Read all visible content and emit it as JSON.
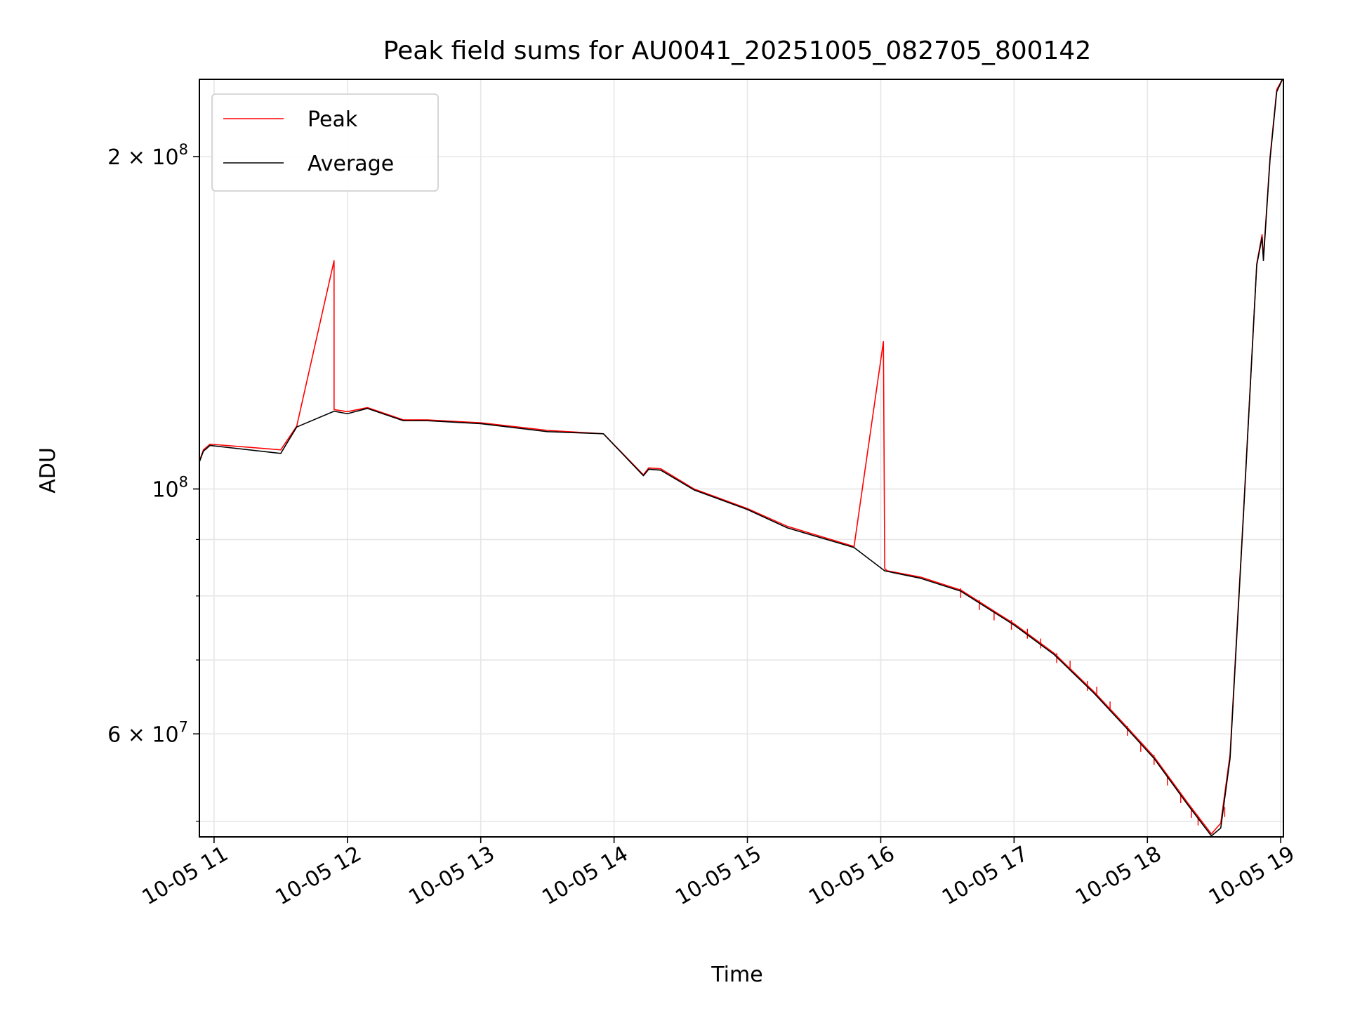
{
  "chart_data": {
    "type": "line",
    "title": "Peak field sums for AU0041_20251005_082705_800142",
    "xlabel": "Time",
    "ylabel": "ADU",
    "y_scale": "log",
    "xlim": [
      10.89,
      19.02
    ],
    "ylim": [
      48400000,
      235000000
    ],
    "grid": true,
    "legend_position": "top-left",
    "x_ticks": [
      {
        "value": 11,
        "label": "10-05 11"
      },
      {
        "value": 12,
        "label": "10-05 12"
      },
      {
        "value": 13,
        "label": "10-05 13"
      },
      {
        "value": 14,
        "label": "10-05 14"
      },
      {
        "value": 15,
        "label": "10-05 15"
      },
      {
        "value": 16,
        "label": "10-05 16"
      },
      {
        "value": 17,
        "label": "10-05 17"
      },
      {
        "value": 18,
        "label": "10-05 18"
      },
      {
        "value": 19,
        "label": "10-05 19"
      }
    ],
    "y_major_ticks": [
      {
        "value": 60000000,
        "mantissa": "6",
        "exponent": "7"
      },
      {
        "value": 100000000,
        "mantissa": "",
        "exponent": "8"
      },
      {
        "value": 200000000,
        "mantissa": "2",
        "exponent": "8"
      }
    ],
    "y_minor_ticks": [
      50000000,
      70000000,
      80000000,
      90000000
    ],
    "series": [
      {
        "name": "Peak",
        "color": "#ff0000",
        "x": [
          10.89,
          10.92,
          10.97,
          11.5,
          11.62,
          11.9,
          11.9,
          12.0,
          12.15,
          12.42,
          12.6,
          13.0,
          13.5,
          13.92,
          14.22,
          14.26,
          14.35,
          14.6,
          15.0,
          15.3,
          15.8,
          16.02,
          16.03,
          16.05,
          16.3,
          16.6,
          17.0,
          17.3,
          17.6,
          17.85,
          18.05,
          18.3,
          18.48,
          18.55,
          18.62,
          18.72,
          18.82,
          18.86,
          18.87,
          18.92,
          18.97,
          19.02
        ],
        "y": [
          106000000,
          108500000,
          109800000,
          108500000,
          114000000,
          161000000,
          118000000,
          117500000,
          118500000,
          115500000,
          115500000,
          114800000,
          113000000,
          112200000,
          103000000,
          104500000,
          104300000,
          100000000,
          96000000,
          92500000,
          88700000,
          136000000,
          84700000,
          84300000,
          83200000,
          81000000,
          75500000,
          71000000,
          65500000,
          60800000,
          57200000,
          52000000,
          48700000,
          49800000,
          57500000,
          95000000,
          160000000,
          170000000,
          162000000,
          200000000,
          230000000,
          236000000
        ],
        "glitches": [
          {
            "x": 16.6,
            "y": 81300000
          },
          {
            "x": 16.74,
            "y": 79300000
          },
          {
            "x": 16.85,
            "y": 77600000
          },
          {
            "x": 16.98,
            "y": 76100000
          },
          {
            "x": 17.1,
            "y": 74700000
          },
          {
            "x": 17.2,
            "y": 73200000
          },
          {
            "x": 17.32,
            "y": 71000000
          },
          {
            "x": 17.42,
            "y": 69900000
          },
          {
            "x": 17.55,
            "y": 67000000
          },
          {
            "x": 17.62,
            "y": 66200000
          },
          {
            "x": 17.72,
            "y": 64200000
          },
          {
            "x": 17.85,
            "y": 61000000
          },
          {
            "x": 17.95,
            "y": 59000000
          },
          {
            "x": 18.05,
            "y": 57400000
          },
          {
            "x": 18.15,
            "y": 55000000
          },
          {
            "x": 18.25,
            "y": 53000000
          },
          {
            "x": 18.33,
            "y": 51400000
          },
          {
            "x": 18.38,
            "y": 50600000
          },
          {
            "x": 18.58,
            "y": 51500000
          }
        ]
      },
      {
        "name": "Average",
        "color": "#000000",
        "x": [
          10.89,
          10.92,
          10.97,
          11.5,
          11.62,
          11.9,
          12.0,
          12.15,
          12.42,
          12.6,
          13.0,
          13.5,
          13.92,
          14.22,
          14.26,
          14.35,
          14.6,
          15.0,
          15.3,
          15.8,
          16.03,
          16.05,
          16.3,
          16.6,
          17.0,
          17.3,
          17.6,
          17.85,
          18.05,
          18.3,
          18.48,
          18.55,
          18.62,
          18.72,
          18.82,
          18.86,
          18.87,
          18.92,
          18.97,
          19.02
        ],
        "y": [
          105800000,
          108200000,
          109500000,
          107700000,
          113800000,
          117600000,
          117000000,
          118300000,
          115300000,
          115300000,
          114600000,
          112700000,
          112200000,
          102800000,
          104200000,
          104000000,
          99800000,
          95800000,
          92200000,
          88500000,
          84300000,
          84200000,
          83000000,
          80800000,
          75300000,
          70800000,
          65300000,
          60600000,
          57000000,
          51800000,
          48500000,
          49300000,
          57000000,
          94500000,
          159500000,
          169000000,
          161000000,
          199000000,
          229000000,
          236000000
        ]
      }
    ]
  }
}
